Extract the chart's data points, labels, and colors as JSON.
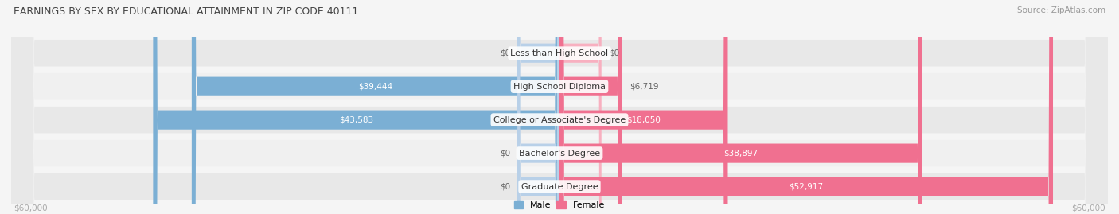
{
  "title": "EARNINGS BY SEX BY EDUCATIONAL ATTAINMENT IN ZIP CODE 40111",
  "source": "Source: ZipAtlas.com",
  "categories": [
    "Less than High School",
    "High School Diploma",
    "College or Associate's Degree",
    "Bachelor's Degree",
    "Graduate Degree"
  ],
  "male_values": [
    0,
    39444,
    43583,
    0,
    0
  ],
  "female_values": [
    0,
    6719,
    18050,
    38897,
    52917
  ],
  "male_bar_color": "#7bafd4",
  "female_bar_color": "#f07090",
  "male_stub_color": "#b8d0e8",
  "female_stub_color": "#f8b0c0",
  "row_bg_even": "#e8e8e8",
  "row_bg_odd": "#f0f0f0",
  "max_value": 60000,
  "stub_value": 4500,
  "xlabel_left": "$60,000",
  "xlabel_right": "$60,000",
  "legend_male": "Male",
  "legend_female": "Female",
  "bg_color": "#f5f5f5",
  "figsize": [
    14.06,
    2.69
  ],
  "dpi": 100
}
